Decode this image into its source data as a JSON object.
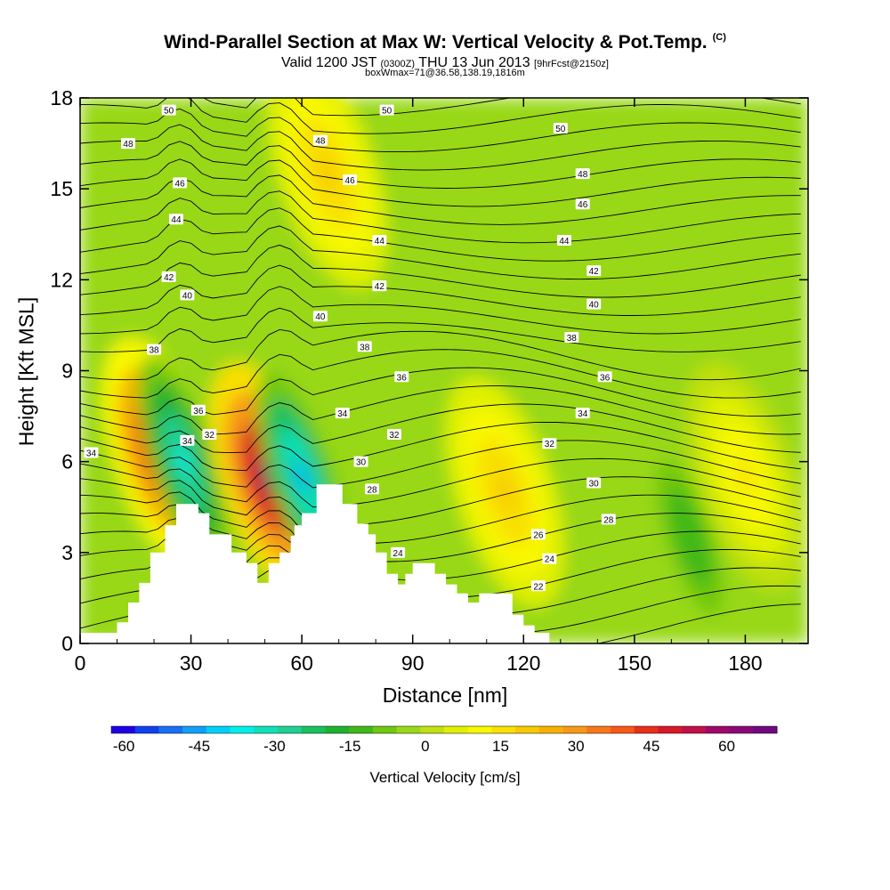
{
  "header": {
    "title": "Wind-Parallel Section at Max W: Vertical Velocity & Pot.Temp.",
    "copyright": "(C)",
    "valid_prefix": "Valid 1200 JST",
    "valid_z": "(0300Z)",
    "valid_date": "THU 13 Jun 2013",
    "valid_fcst": "[9hrFcst@2150z]",
    "box_line": "boxWmax=71@36.58,138.19,1816m"
  },
  "colorbar": {
    "label": "Vertical Velocity [cm/s]",
    "tick_labels": [
      "-60",
      "-45",
      "-30",
      "-15",
      "0",
      "15",
      "30",
      "45",
      "60"
    ],
    "tick_values": [
      -60,
      -45,
      -30,
      -15,
      0,
      15,
      30,
      45,
      60
    ],
    "min": -62.5,
    "max": 70,
    "colors": [
      "#1f00e8",
      "#1040f0",
      "#1870f8",
      "#10a0f8",
      "#00d0f8",
      "#00f0e8",
      "#10e0b8",
      "#20d090",
      "#18c060",
      "#20b030",
      "#40b818",
      "#70c810",
      "#98d818",
      "#c0e010",
      "#e0f000",
      "#f8f800",
      "#f8e000",
      "#f8c800",
      "#f8b000",
      "#f89818",
      "#f87818",
      "#f85818",
      "#e83018",
      "#d81828",
      "#c01048",
      "#a00868",
      "#880878",
      "#700880"
    ]
  },
  "chart_data": {
    "type": "heatmap",
    "title": "Wind-Parallel Section at Max W: Vertical Velocity & Pot.Temp.",
    "xlabel": "Distance [nm]",
    "ylabel": "Height [Kft MSL]",
    "xlim": [
      0,
      197
    ],
    "ylim": [
      0,
      18
    ],
    "xticks": [
      0,
      30,
      60,
      90,
      120,
      150,
      180
    ],
    "yticks": [
      0,
      3,
      6,
      9,
      12,
      15,
      18
    ],
    "fill_variable": "Vertical Velocity [cm/s]",
    "contour_variable": "Potential Temperature (C)",
    "fill_features": [
      {
        "x": 22,
        "y": 6.3,
        "w": 56,
        "kind": "updraft"
      },
      {
        "x": 28,
        "y": 6.0,
        "w": -38,
        "kind": "downdraft"
      },
      {
        "x": 51,
        "y": 5.5,
        "w": 70,
        "kind": "updraft"
      },
      {
        "x": 60,
        "y": 5.5,
        "w": -45,
        "kind": "downdraft"
      },
      {
        "x": 67,
        "y": 15.5,
        "w": 22,
        "kind": "updraft"
      },
      {
        "x": 115,
        "y": 5.0,
        "w": 20,
        "kind": "updraft"
      },
      {
        "x": 165,
        "y": 3.5,
        "w": -15,
        "kind": "downdraft"
      },
      {
        "x": 180,
        "y": 5.5,
        "w": 15,
        "kind": "updraft"
      }
    ],
    "terrain": [
      [
        0,
        0.35
      ],
      [
        10,
        0.35
      ],
      [
        10,
        0.7
      ],
      [
        13,
        0.7
      ],
      [
        13,
        1.35
      ],
      [
        16,
        1.35
      ],
      [
        16,
        2.0
      ],
      [
        19,
        2.0
      ],
      [
        19,
        3.0
      ],
      [
        23,
        3.0
      ],
      [
        23,
        3.9
      ],
      [
        26,
        3.9
      ],
      [
        26,
        4.6
      ],
      [
        32,
        4.6
      ],
      [
        32,
        4.3
      ],
      [
        35,
        4.3
      ],
      [
        35,
        3.6
      ],
      [
        41,
        3.6
      ],
      [
        41,
        3.0
      ],
      [
        45,
        3.0
      ],
      [
        45,
        2.65
      ],
      [
        48,
        2.65
      ],
      [
        48,
        2.0
      ],
      [
        51,
        2.0
      ],
      [
        51,
        2.65
      ],
      [
        54,
        2.65
      ],
      [
        54,
        3.0
      ],
      [
        57,
        3.0
      ],
      [
        57,
        3.55
      ],
      [
        58,
        3.55
      ],
      [
        58,
        3.9
      ],
      [
        60,
        3.9
      ],
      [
        60,
        4.3
      ],
      [
        64,
        4.3
      ],
      [
        64,
        5.25
      ],
      [
        71,
        5.25
      ],
      [
        71,
        4.6
      ],
      [
        75,
        4.6
      ],
      [
        75,
        3.95
      ],
      [
        78,
        3.95
      ],
      [
        78,
        3.6
      ],
      [
        80,
        3.6
      ],
      [
        80,
        3.0
      ],
      [
        83,
        3.0
      ],
      [
        83,
        2.3
      ],
      [
        86,
        2.3
      ],
      [
        86,
        1.95
      ],
      [
        88,
        1.95
      ],
      [
        88,
        2.3
      ],
      [
        90,
        2.3
      ],
      [
        90,
        2.65
      ],
      [
        96,
        2.65
      ],
      [
        96,
        2.3
      ],
      [
        99,
        2.3
      ],
      [
        99,
        1.95
      ],
      [
        102,
        1.95
      ],
      [
        102,
        1.65
      ],
      [
        105,
        1.65
      ],
      [
        105,
        1.35
      ],
      [
        108,
        1.35
      ],
      [
        108,
        1.65
      ],
      [
        117,
        1.65
      ],
      [
        117,
        0.95
      ],
      [
        120,
        0.95
      ],
      [
        120,
        0.6
      ],
      [
        123,
        0.6
      ],
      [
        123,
        0.35
      ],
      [
        127,
        0.35
      ],
      [
        127,
        0
      ]
    ],
    "theta_labels": [
      {
        "label": "50",
        "x": 24,
        "y": 17.6
      },
      {
        "label": "50",
        "x": 83,
        "y": 17.6
      },
      {
        "label": "50",
        "x": 130,
        "y": 17.0
      },
      {
        "label": "48",
        "x": 13,
        "y": 16.5
      },
      {
        "label": "48",
        "x": 65,
        "y": 16.6
      },
      {
        "label": "48",
        "x": 136,
        "y": 15.5
      },
      {
        "label": "46",
        "x": 27,
        "y": 15.2
      },
      {
        "label": "46",
        "x": 73,
        "y": 15.3
      },
      {
        "label": "46",
        "x": 136,
        "y": 14.5
      },
      {
        "label": "44",
        "x": 26,
        "y": 14.0
      },
      {
        "label": "44",
        "x": 81,
        "y": 13.3
      },
      {
        "label": "44",
        "x": 131,
        "y": 13.3
      },
      {
        "label": "42",
        "x": 24,
        "y": 12.1
      },
      {
        "label": "42",
        "x": 81,
        "y": 11.8
      },
      {
        "label": "42",
        "x": 139,
        "y": 12.3
      },
      {
        "label": "40",
        "x": 29,
        "y": 11.5
      },
      {
        "label": "40",
        "x": 65,
        "y": 10.8
      },
      {
        "label": "40",
        "x": 139,
        "y": 11.2
      },
      {
        "label": "38",
        "x": 20,
        "y": 9.7
      },
      {
        "label": "38",
        "x": 77,
        "y": 9.8
      },
      {
        "label": "38",
        "x": 133,
        "y": 10.1
      },
      {
        "label": "36",
        "x": 32,
        "y": 7.7
      },
      {
        "label": "36",
        "x": 87,
        "y": 8.8
      },
      {
        "label": "36",
        "x": 142,
        "y": 8.8
      },
      {
        "label": "34",
        "x": 3,
        "y": 6.3
      },
      {
        "label": "34",
        "x": 29,
        "y": 6.7
      },
      {
        "label": "34",
        "x": 71,
        "y": 7.6
      },
      {
        "label": "34",
        "x": 136,
        "y": 7.6
      },
      {
        "label": "32",
        "x": 35,
        "y": 6.9
      },
      {
        "label": "32",
        "x": 85,
        "y": 6.9
      },
      {
        "label": "32",
        "x": 127,
        "y": 6.6
      },
      {
        "label": "30",
        "x": 76,
        "y": 6.0
      },
      {
        "label": "30",
        "x": 139,
        "y": 5.3
      },
      {
        "label": "28",
        "x": 79,
        "y": 5.1
      },
      {
        "label": "28",
        "x": 143,
        "y": 4.1
      },
      {
        "label": "26",
        "x": 124,
        "y": 3.6
      },
      {
        "label": "24",
        "x": 86,
        "y": 3.0
      },
      {
        "label": "24",
        "x": 127,
        "y": 2.8
      },
      {
        "label": "22",
        "x": 124,
        "y": 1.9
      }
    ]
  }
}
